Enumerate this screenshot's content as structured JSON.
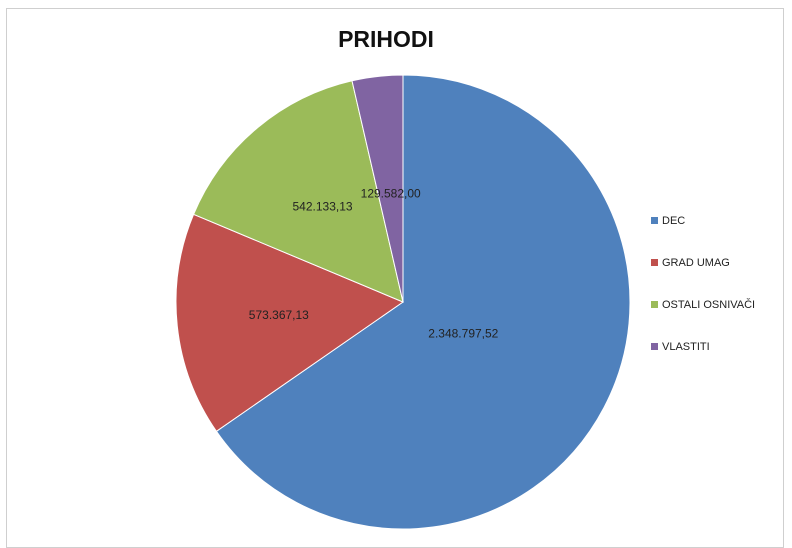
{
  "chart_data": {
    "type": "pie",
    "title": "PRIHODI",
    "categories": [
      "DEC",
      "GRAD UMAG",
      "OSTALI OSNIVAČI",
      "VLASTITI"
    ],
    "values": [
      2348797.52,
      573367.13,
      542133.13,
      129582.0
    ],
    "data_labels": [
      "2.348.797,52",
      "573.367,13",
      "542.133,13",
      "129.582,00"
    ],
    "colors": [
      "#4f81bd",
      "#c0504d",
      "#9bbb59",
      "#8064a2"
    ],
    "legend_position": "right",
    "start_angle": "12 o'clock",
    "direction": "clockwise"
  }
}
